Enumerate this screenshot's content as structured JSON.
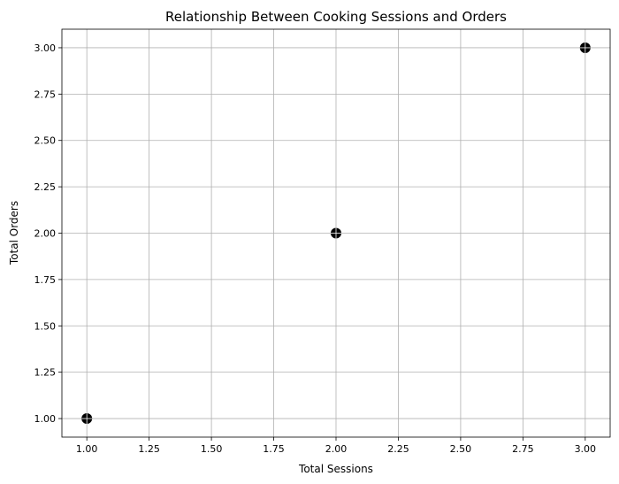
{
  "chart_data": {
    "type": "scatter",
    "title": "Relationship Between Cooking Sessions and Orders",
    "xlabel": "Total Sessions",
    "ylabel": "Total Orders",
    "xlim": [
      0.9,
      3.1
    ],
    "ylim": [
      0.9,
      3.1
    ],
    "grid": true,
    "x_ticks": [
      "1.00",
      "1.25",
      "1.50",
      "1.75",
      "2.00",
      "2.25",
      "2.50",
      "2.75",
      "3.00"
    ],
    "y_ticks": [
      "1.00",
      "1.25",
      "1.50",
      "1.75",
      "2.00",
      "2.25",
      "2.50",
      "2.75",
      "3.00"
    ],
    "points": [
      {
        "x": 1,
        "y": 1
      },
      {
        "x": 2,
        "y": 2
      },
      {
        "x": 3,
        "y": 3
      }
    ],
    "marker_color": "#000000"
  }
}
